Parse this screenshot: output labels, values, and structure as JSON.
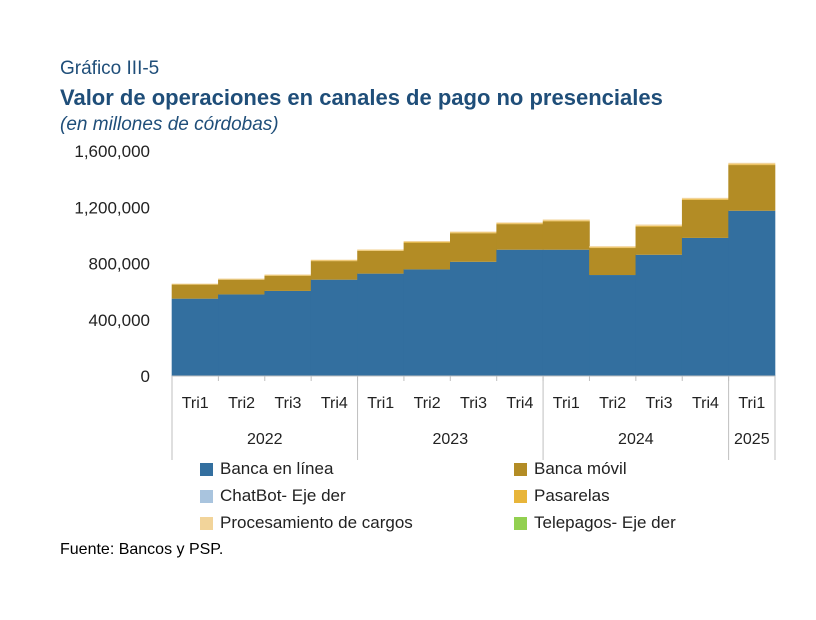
{
  "header": {
    "kicker": "Gráfico III-5",
    "title": "Valor de operaciones en canales de pago no presenciales",
    "subtitle": "(en millones de córdobas)"
  },
  "footer": {
    "source": "Fuente: Bancos y PSP."
  },
  "chart_data": {
    "type": "bar",
    "stacked": true,
    "categories": [
      "Tri1",
      "Tri2",
      "Tri3",
      "Tri4",
      "Tri1",
      "Tri2",
      "Tri3",
      "Tri4",
      "Tri1",
      "Tri2",
      "Tri3",
      "Tri4",
      "Tri1"
    ],
    "groups": [
      {
        "label": "2022",
        "count": 4
      },
      {
        "label": "2023",
        "count": 4
      },
      {
        "label": "2024",
        "count": 4
      },
      {
        "label": "2025",
        "count": 1
      }
    ],
    "ylim": [
      0,
      1600000
    ],
    "yticks": [
      0,
      400000,
      800000,
      1200000,
      1600000
    ],
    "ytick_labels": [
      "0",
      "400,000",
      "800,000",
      "1,200,000",
      "1,600,000"
    ],
    "grid": false,
    "legend_position": "bottom",
    "series": [
      {
        "name": "Banca en línea",
        "color": "#336f9f",
        "values": [
          550000,
          580000,
          605000,
          685000,
          728000,
          758000,
          812000,
          898000,
          898000,
          718000,
          862000,
          982000,
          1175000
        ]
      },
      {
        "name": "Banca móvil",
        "color": "#b38c25",
        "values": [
          100000,
          105000,
          108000,
          132000,
          162000,
          190000,
          203000,
          182000,
          202000,
          192000,
          200000,
          270000,
          325000
        ]
      },
      {
        "name": "ChatBot- Eje der",
        "color": "#a9c4de",
        "values": [
          0,
          0,
          0,
          0,
          0,
          0,
          0,
          0,
          0,
          0,
          0,
          0,
          0
        ]
      },
      {
        "name": "Pasarelas",
        "color": "#e8b53a",
        "values": [
          3000,
          3000,
          4000,
          4000,
          4000,
          5000,
          5000,
          5000,
          5000,
          5000,
          6000,
          6000,
          6000
        ]
      },
      {
        "name": "Procesamiento de cargos",
        "color": "#f2d49a",
        "values": [
          4000,
          5000,
          5000,
          6000,
          6000,
          7000,
          7000,
          7000,
          8000,
          8000,
          9000,
          9000,
          10000
        ]
      },
      {
        "name": "Telepagos- Eje der",
        "color": "#92d050",
        "values": [
          0,
          0,
          0,
          0,
          0,
          0,
          0,
          0,
          0,
          0,
          0,
          0,
          0
        ]
      }
    ]
  }
}
